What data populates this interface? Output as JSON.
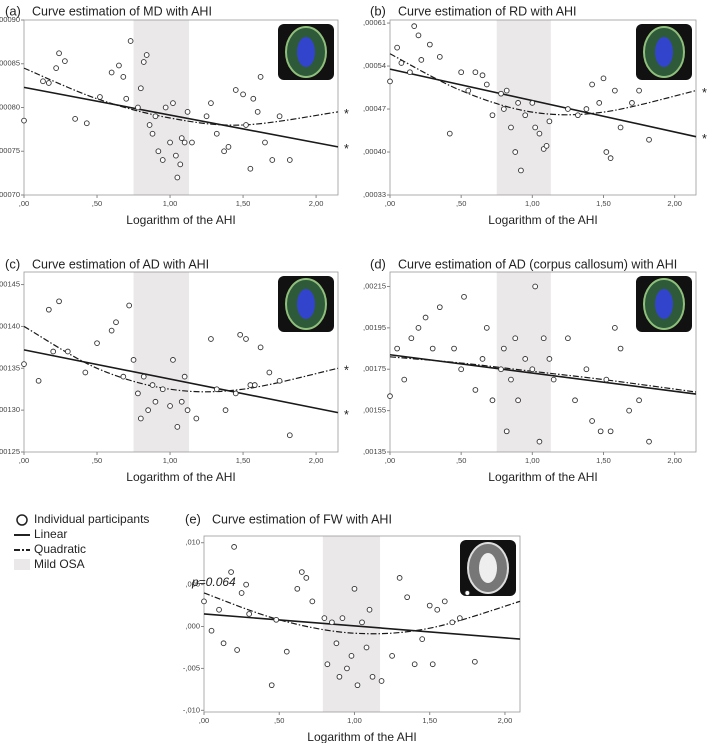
{
  "legend": [
    "Individual participants",
    "Linear",
    "Quadratic",
    "Mild OSA"
  ],
  "chart_data": [
    {
      "type": "scatter",
      "label": "(a)",
      "title": "Curve estimation of MD with AHI",
      "xlabel": "Logarithm of the AHI",
      "xlim": [
        0,
        2.15
      ],
      "ylim": [
        0.0007,
        0.0009
      ],
      "xticks": [
        {
          "value": 0,
          "label": ",00"
        },
        {
          "value": 0.5,
          "label": ",50"
        },
        {
          "value": 1,
          "label": "1,00"
        },
        {
          "value": 1.5,
          "label": "1,50"
        },
        {
          "value": 2,
          "label": "2,00"
        }
      ],
      "yticks": [
        {
          "value": 0.0007,
          "label": ",00070"
        },
        {
          "value": 0.00075,
          "label": ",00075"
        },
        {
          "value": 0.0008,
          "label": ",00080"
        },
        {
          "value": 0.00085,
          "label": ",00085"
        },
        {
          "value": 0.0009,
          "label": ",00090"
        }
      ],
      "band": [
        0.75,
        1.13
      ],
      "points": {
        "x": [
          0.0,
          0.13,
          0.17,
          0.22,
          0.24,
          0.28,
          0.35,
          0.43,
          0.52,
          0.6,
          0.65,
          0.68,
          0.7,
          0.73,
          0.78,
          0.8,
          0.82,
          0.84,
          0.86,
          0.88,
          0.9,
          0.92,
          0.95,
          0.97,
          1.0,
          1.02,
          1.04,
          1.05,
          1.07,
          1.08,
          1.1,
          1.12,
          1.15,
          1.25,
          1.28,
          1.32,
          1.37,
          1.4,
          1.45,
          1.5,
          1.52,
          1.55,
          1.57,
          1.6,
          1.62,
          1.65,
          1.7,
          1.75,
          1.82
        ],
        "values": [
          0.000785,
          0.00083,
          0.000828,
          0.000845,
          0.000862,
          0.000853,
          0.000787,
          0.000782,
          0.000812,
          0.00084,
          0.000848,
          0.000835,
          0.00081,
          0.000876,
          0.0008,
          0.000822,
          0.000852,
          0.00086,
          0.00078,
          0.00077,
          0.00079,
          0.00075,
          0.00074,
          0.0008,
          0.00076,
          0.000805,
          0.000745,
          0.00072,
          0.000735,
          0.000765,
          0.00076,
          0.000795,
          0.00076,
          0.00079,
          0.000805,
          0.00077,
          0.00075,
          0.000755,
          0.00082,
          0.000815,
          0.00078,
          0.00073,
          0.00081,
          0.000795,
          0.000835,
          0.00076,
          0.00074,
          0.00079,
          0.00074
        ]
      },
      "linear": {
        "x": [
          0,
          2.15
        ],
        "values": [
          0.000823,
          0.000755
        ],
        "note": "*"
      },
      "quadratic": {
        "x": [
          0,
          0.5,
          1.0,
          1.5,
          2.15
        ],
        "values": [
          0.000845,
          0.00081,
          0.000788,
          0.00078,
          0.000795
        ],
        "note": "*"
      }
    },
    {
      "type": "scatter",
      "label": "(b)",
      "title": "Curve estimation of RD with AHI",
      "xlabel": "Logarithm of the AHI",
      "xlim": [
        0,
        2.15
      ],
      "ylim": [
        0.00033,
        0.000615
      ],
      "xticks": [
        {
          "value": 0,
          "label": ",00"
        },
        {
          "value": 0.5,
          "label": ",50"
        },
        {
          "value": 1,
          "label": "1,00"
        },
        {
          "value": 1.5,
          "label": "1,50"
        },
        {
          "value": 2,
          "label": "2,00"
        }
      ],
      "yticks": [
        {
          "value": 0.00033,
          "label": ",00033"
        },
        {
          "value": 0.0004,
          "label": ",00040"
        },
        {
          "value": 0.00047,
          "label": ",00047"
        },
        {
          "value": 0.00054,
          "label": ",00054"
        },
        {
          "value": 0.00061,
          "label": ",00061"
        }
      ],
      "band": [
        0.75,
        1.13
      ],
      "points": {
        "x": [
          0.0,
          0.05,
          0.08,
          0.14,
          0.17,
          0.2,
          0.22,
          0.28,
          0.35,
          0.42,
          0.5,
          0.55,
          0.6,
          0.65,
          0.68,
          0.72,
          0.78,
          0.8,
          0.82,
          0.85,
          0.88,
          0.9,
          0.92,
          0.95,
          1.0,
          1.02,
          1.05,
          1.08,
          1.1,
          1.12,
          1.25,
          1.32,
          1.38,
          1.42,
          1.47,
          1.5,
          1.52,
          1.55,
          1.58,
          1.62,
          1.7,
          1.75,
          1.82
        ],
        "values": [
          0.000515,
          0.00057,
          0.000545,
          0.00053,
          0.000605,
          0.00059,
          0.00055,
          0.000575,
          0.000555,
          0.00043,
          0.00053,
          0.0005,
          0.00053,
          0.000525,
          0.00051,
          0.00046,
          0.000495,
          0.00047,
          0.0005,
          0.00044,
          0.0004,
          0.00048,
          0.00037,
          0.00046,
          0.00048,
          0.00044,
          0.00043,
          0.000405,
          0.00041,
          0.00045,
          0.00047,
          0.00046,
          0.00047,
          0.00051,
          0.00048,
          0.00052,
          0.0004,
          0.00039,
          0.0005,
          0.00044,
          0.00048,
          0.0005,
          0.00042
        ]
      },
      "linear": {
        "x": [
          0,
          2.15
        ],
        "values": [
          0.000535,
          0.000425
        ],
        "note": "*"
      },
      "quadratic": {
        "x": [
          0,
          0.5,
          1.0,
          1.5,
          2.15
        ],
        "values": [
          0.00056,
          0.0005,
          0.000465,
          0.000465,
          0.0005
        ],
        "note": "*"
      }
    },
    {
      "type": "scatter",
      "label": "(c)",
      "title": "Curve estimation of AD with AHI",
      "xlabel": "Logarithm of the AHI",
      "xlim": [
        0,
        2.15
      ],
      "ylim": [
        0.00125,
        0.001465
      ],
      "xticks": [
        {
          "value": 0,
          "label": ",00"
        },
        {
          "value": 0.5,
          "label": ",50"
        },
        {
          "value": 1,
          "label": "1,00"
        },
        {
          "value": 1.5,
          "label": "1,50"
        },
        {
          "value": 2,
          "label": "2,00"
        }
      ],
      "yticks": [
        {
          "value": 0.00125,
          "label": ",00125"
        },
        {
          "value": 0.0013,
          "label": ",00130"
        },
        {
          "value": 0.00135,
          "label": ",00135"
        },
        {
          "value": 0.0014,
          "label": ",00140"
        },
        {
          "value": 0.00145,
          "label": ",00145"
        }
      ],
      "band": [
        0.75,
        1.13
      ],
      "points": {
        "x": [
          0.0,
          0.1,
          0.17,
          0.2,
          0.24,
          0.3,
          0.42,
          0.5,
          0.6,
          0.63,
          0.68,
          0.72,
          0.75,
          0.78,
          0.8,
          0.82,
          0.85,
          0.88,
          0.9,
          0.95,
          1.0,
          1.02,
          1.05,
          1.08,
          1.1,
          1.12,
          1.18,
          1.28,
          1.32,
          1.38,
          1.45,
          1.48,
          1.52,
          1.55,
          1.58,
          1.62,
          1.68,
          1.75,
          1.82
        ],
        "values": [
          0.001355,
          0.001335,
          0.00142,
          0.00137,
          0.00143,
          0.00137,
          0.001345,
          0.00138,
          0.001395,
          0.001405,
          0.00134,
          0.001425,
          0.00136,
          0.00132,
          0.00129,
          0.00134,
          0.0013,
          0.00133,
          0.00131,
          0.001325,
          0.001305,
          0.00136,
          0.00128,
          0.00131,
          0.00134,
          0.0013,
          0.00129,
          0.001385,
          0.001325,
          0.0013,
          0.00132,
          0.00139,
          0.001385,
          0.00133,
          0.00133,
          0.001375,
          0.001345,
          0.001335,
          0.00127
        ]
      },
      "linear": {
        "x": [
          0,
          2.15
        ],
        "values": [
          0.001372,
          0.001297
        ],
        "note": "*"
      },
      "quadratic": {
        "x": [
          0,
          0.5,
          1.0,
          1.5,
          2.15
        ],
        "values": [
          0.0014,
          0.00135,
          0.001325,
          0.001325,
          0.00135
        ],
        "note": "*"
      }
    },
    {
      "type": "scatter",
      "label": "(d)",
      "title": "Curve estimation of AD (corpus callosum) with AHI",
      "xlabel": "Logarithm of the AHI",
      "xlim": [
        0,
        2.15
      ],
      "ylim": [
        0.00135,
        0.00222
      ],
      "xticks": [
        {
          "value": 0,
          "label": ",00"
        },
        {
          "value": 0.5,
          "label": ",50"
        },
        {
          "value": 1,
          "label": "1,00"
        },
        {
          "value": 1.5,
          "label": "1,50"
        },
        {
          "value": 2,
          "label": "2,00"
        }
      ],
      "yticks": [
        {
          "value": 0.00135,
          "label": ",00135"
        },
        {
          "value": 0.00155,
          "label": ",00155"
        },
        {
          "value": 0.00175,
          "label": ",00175"
        },
        {
          "value": 0.00195,
          "label": ",00195"
        },
        {
          "value": 0.00215,
          "label": ",00215"
        }
      ],
      "band": [
        0.75,
        1.13
      ],
      "points": {
        "x": [
          0.0,
          0.05,
          0.1,
          0.15,
          0.2,
          0.25,
          0.3,
          0.35,
          0.45,
          0.5,
          0.52,
          0.6,
          0.65,
          0.68,
          0.72,
          0.78,
          0.8,
          0.82,
          0.85,
          0.88,
          0.9,
          0.95,
          1.0,
          1.02,
          1.05,
          1.08,
          1.12,
          1.15,
          1.25,
          1.3,
          1.38,
          1.42,
          1.48,
          1.52,
          1.55,
          1.58,
          1.62,
          1.68,
          1.75,
          1.82
        ],
        "values": [
          0.00162,
          0.00185,
          0.0017,
          0.0019,
          0.00195,
          0.002,
          0.00185,
          0.00205,
          0.00185,
          0.00175,
          0.0021,
          0.00165,
          0.0018,
          0.00195,
          0.0016,
          0.00175,
          0.00185,
          0.00145,
          0.0017,
          0.0019,
          0.0016,
          0.0018,
          0.00175,
          0.00215,
          0.0014,
          0.0019,
          0.0018,
          0.0017,
          0.0019,
          0.0016,
          0.00175,
          0.0015,
          0.00145,
          0.0017,
          0.00145,
          0.00195,
          0.00185,
          0.00155,
          0.0016,
          0.0014
        ]
      },
      "linear": {
        "x": [
          0,
          2.15
        ],
        "values": [
          0.00182,
          0.00163
        ]
      },
      "quadratic": {
        "x": [
          0,
          0.5,
          1.0,
          1.5,
          2.15
        ],
        "values": [
          0.00181,
          0.00178,
          0.00174,
          0.0017,
          0.00164
        ]
      }
    },
    {
      "type": "scatter",
      "label": "(e)",
      "title": "Curve estimation of FW with AHI",
      "xlabel": "Logarithm of the AHI",
      "xlim": [
        0,
        2.1
      ],
      "ylim": [
        -0.0102,
        0.0108
      ],
      "xticks": [
        {
          "value": 0,
          "label": ",00"
        },
        {
          "value": 0.5,
          "label": ",50"
        },
        {
          "value": 1,
          "label": "1,00"
        },
        {
          "value": 1.5,
          "label": "1,50"
        },
        {
          "value": 2,
          "label": "2,00"
        }
      ],
      "yticks": [
        {
          "value": -0.01,
          "label": "-,010"
        },
        {
          "value": -0.005,
          "label": "-,005"
        },
        {
          "value": 0,
          "label": ",000"
        },
        {
          "value": 0.005,
          "label": ",005"
        },
        {
          "value": 0.01,
          "label": ",010"
        }
      ],
      "band": [
        0.79,
        1.17
      ],
      "points": {
        "x": [
          0.0,
          0.05,
          0.1,
          0.13,
          0.18,
          0.2,
          0.22,
          0.25,
          0.28,
          0.3,
          0.45,
          0.48,
          0.55,
          0.62,
          0.65,
          0.68,
          0.72,
          0.8,
          0.82,
          0.85,
          0.88,
          0.9,
          0.92,
          0.95,
          0.98,
          1.0,
          1.02,
          1.05,
          1.08,
          1.1,
          1.12,
          1.18,
          1.25,
          1.3,
          1.35,
          1.4,
          1.45,
          1.5,
          1.52,
          1.55,
          1.6,
          1.65,
          1.7,
          1.75,
          1.8
        ],
        "values": [
          0.003,
          -0.0005,
          0.002,
          -0.002,
          0.0065,
          0.0095,
          -0.0028,
          0.004,
          0.005,
          0.0015,
          -0.007,
          0.0008,
          -0.003,
          0.0045,
          0.0065,
          0.0058,
          0.003,
          0.001,
          -0.0045,
          0.0005,
          -0.002,
          -0.006,
          0.001,
          -0.005,
          -0.0035,
          0.0045,
          -0.007,
          0.0005,
          -0.0025,
          0.002,
          -0.006,
          -0.0065,
          -0.0035,
          0.0058,
          0.0035,
          -0.0045,
          -0.0015,
          0.0025,
          -0.0045,
          0.002,
          0.003,
          0.0005,
          0.001,
          0.004,
          -0.0042
        ]
      },
      "linear": {
        "x": [
          0,
          2.1
        ],
        "values": [
          0.0015,
          -0.0015
        ]
      },
      "quadratic": {
        "x": [
          0,
          0.5,
          1.0,
          1.5,
          2.1
        ],
        "values": [
          0.004,
          0.0008,
          -0.0008,
          -0.0002,
          0.003
        ]
      },
      "annotation": "p=0.064"
    }
  ]
}
